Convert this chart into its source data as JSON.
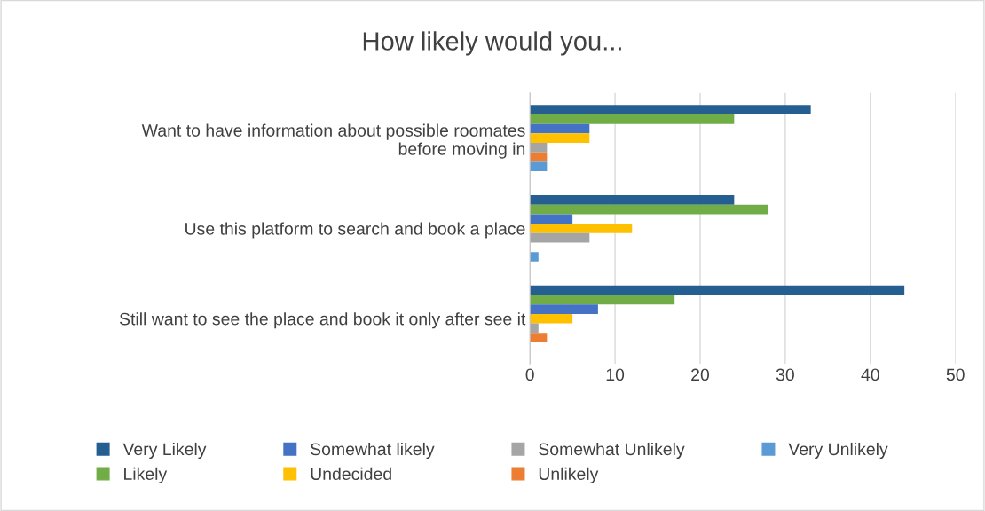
{
  "chart_data": {
    "type": "bar",
    "orientation": "horizontal",
    "title": "How likely would you...",
    "categories": [
      "Want to have information about possible roomates\nbefore moving in",
      "Use this platform to search and book a place",
      "Still want to see the place and book it only after see it"
    ],
    "series": [
      {
        "name": "Very Likely",
        "color": "#255e91",
        "values": [
          33,
          24,
          44
        ]
      },
      {
        "name": "Likely",
        "color": "#70ad47",
        "values": [
          24,
          28,
          17
        ]
      },
      {
        "name": "Somewhat likely",
        "color": "#4472c4",
        "values": [
          7,
          5,
          8
        ]
      },
      {
        "name": "Undecided",
        "color": "#ffc000",
        "values": [
          7,
          12,
          5
        ]
      },
      {
        "name": "Somewhat Unlikely",
        "color": "#a5a5a5",
        "values": [
          2,
          7,
          1
        ]
      },
      {
        "name": "Unlikely",
        "color": "#ed7d31",
        "values": [
          2,
          0,
          2
        ]
      },
      {
        "name": "Very Unlikely",
        "color": "#5b9bd5",
        "values": [
          2,
          1,
          0
        ]
      }
    ],
    "xlim": [
      0,
      50
    ],
    "xticks": [
      0,
      10,
      20,
      30,
      40,
      50
    ],
    "grid": "x",
    "legend": "bottom"
  }
}
